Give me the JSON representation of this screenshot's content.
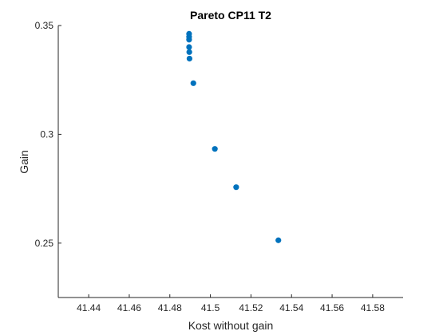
{
  "chart_data": {
    "type": "scatter",
    "title": "Pareto CP11 T2",
    "xlabel": "Kost without gain",
    "ylabel": "Gain",
    "xlim": [
      41.425,
      41.595
    ],
    "ylim": [
      0.225,
      0.35
    ],
    "xticks": [
      41.44,
      41.46,
      41.48,
      41.5,
      41.52,
      41.54,
      41.56,
      41.58
    ],
    "xtick_labels": [
      "41.44",
      "41.46",
      "41.48",
      "41.5",
      "41.52",
      "41.54",
      "41.56",
      "41.58"
    ],
    "yticks": [
      0.25,
      0.3,
      0.35
    ],
    "ytick_labels": [
      "0.25",
      "0.3",
      "0.35"
    ],
    "grid": false,
    "marker_color": "#0072bd",
    "points": [
      {
        "x": 41.4895,
        "y": 0.3462
      },
      {
        "x": 41.4895,
        "y": 0.3448
      },
      {
        "x": 41.4895,
        "y": 0.3435
      },
      {
        "x": 41.4895,
        "y": 0.3401
      },
      {
        "x": 41.4896,
        "y": 0.3378
      },
      {
        "x": 41.4897,
        "y": 0.3348
      },
      {
        "x": 41.4916,
        "y": 0.3235
      },
      {
        "x": 41.5022,
        "y": 0.2933
      },
      {
        "x": 41.5127,
        "y": 0.2757
      },
      {
        "x": 41.5335,
        "y": 0.2513
      }
    ]
  }
}
